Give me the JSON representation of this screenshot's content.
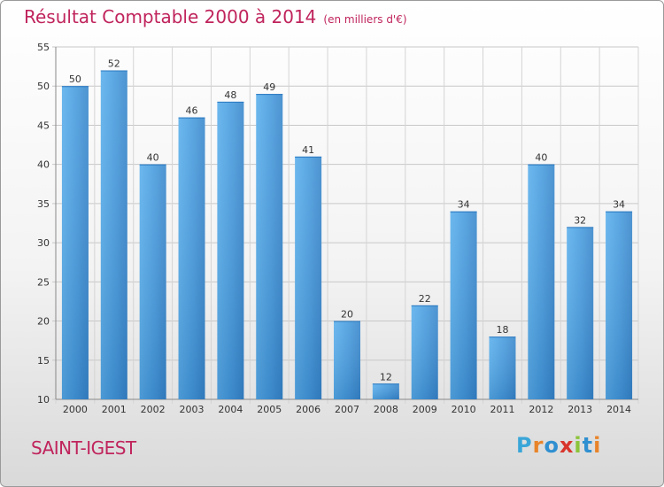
{
  "title": "Résultat Comptable 2000 à 2014",
  "subtitle": "(en milliers d'€)",
  "commune": "SAINT-IGEST",
  "logo": {
    "letters": [
      "P",
      "r",
      "o",
      "x",
      "i",
      "t",
      "i"
    ],
    "colors": [
      "#3aa6d8",
      "#e8842a",
      "#2f8fd0",
      "#d8352c",
      "#8cc43a",
      "#2f8fd0",
      "#e8842a"
    ]
  },
  "colors": {
    "bar": "#4aa0e0",
    "bar_light": "#6ab8f0",
    "bar_dark": "#2a78c0",
    "title": "#c0245c"
  },
  "chart_data": {
    "type": "bar",
    "categories": [
      "2000",
      "2001",
      "2002",
      "2003",
      "2004",
      "2005",
      "2006",
      "2007",
      "2008",
      "2009",
      "2010",
      "2011",
      "2012",
      "2013",
      "2014"
    ],
    "values": [
      50,
      52,
      40,
      46,
      48,
      49,
      41,
      20,
      12,
      22,
      34,
      18,
      40,
      32,
      34
    ],
    "title": "Résultat Comptable 2000 à 2014",
    "xlabel": "",
    "ylabel": "",
    "ylim": [
      10,
      55
    ],
    "yticks": [
      10,
      15,
      20,
      25,
      30,
      35,
      40,
      45,
      50,
      55
    ],
    "grid": true
  }
}
